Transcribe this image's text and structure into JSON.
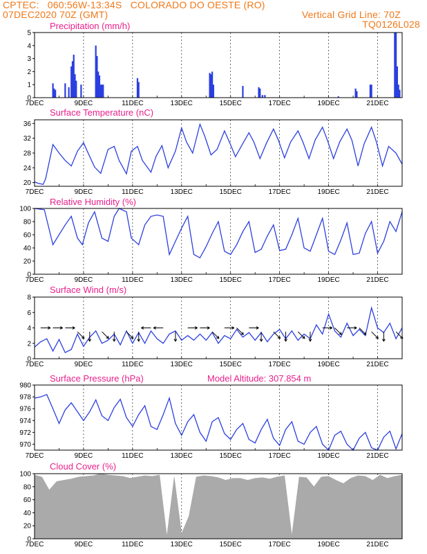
{
  "header": {
    "line1": "CPTEC:   060:56W-13:34S   COLORADO DO OESTE (RO)",
    "line2": "07DEC2020 70Z (GMT)",
    "grid_line": "Vertical Grid Line: 70Z",
    "code": "TQ0126L028"
  },
  "model_altitude": "Model Altitude: 307.854 m",
  "colors": {
    "header": "#f07818",
    "title": "#e8208c",
    "line": "#2b3fe0",
    "bar": "#2b3fe0",
    "cloud": "#aaaaaa",
    "arrow": "#000000"
  },
  "x_axis": {
    "start_day": 7,
    "end_day": 22,
    "tick_labels": [
      "7DEC",
      "9DEC",
      "11DEC",
      "13DEC",
      "15DEC",
      "17DEC",
      "19DEC",
      "21DEC"
    ],
    "tick_days": [
      7,
      9,
      11,
      13,
      15,
      17,
      19,
      21
    ]
  },
  "chart_data": [
    {
      "type": "bar",
      "title": "Precipitation (mm/h)",
      "ylim": [
        0,
        5
      ],
      "yticks": [
        "0",
        "1",
        "2",
        "3",
        "4",
        "5"
      ],
      "x": [
        7.75,
        7.8,
        7.85,
        8.25,
        8.4,
        8.5,
        8.55,
        8.6,
        8.65,
        8.7,
        8.9,
        9.5,
        9.55,
        9.6,
        9.65,
        9.7,
        9.75,
        9.8,
        11.2,
        11.25,
        14.15,
        14.2,
        14.25,
        14.3,
        15.5,
        16.15,
        16.2,
        16.3,
        16.4,
        19.4,
        20.1,
        20.15,
        20.7,
        20.75,
        21.7,
        21.75,
        21.8,
        21.85,
        21.9
      ],
      "values": [
        1.1,
        0.7,
        0.6,
        1.1,
        0.8,
        2.4,
        2.8,
        3.3,
        1.8,
        1.3,
        1.0,
        4.0,
        3.2,
        2.0,
        1.7,
        1.0,
        1.0,
        1.0,
        1.5,
        1.2,
        1.9,
        1.8,
        2.0,
        1.0,
        0.9,
        0.8,
        0.7,
        0.2,
        0.2,
        0.1,
        0.7,
        0.5,
        1.0,
        1.0,
        5.0,
        5.0,
        2.4,
        1.0,
        0.6
      ]
    },
    {
      "type": "line",
      "title": "Surface Temperature (nC)",
      "ylim": [
        19,
        37
      ],
      "yticks": [
        "20",
        "24",
        "28",
        "32",
        "36"
      ],
      "x": [
        7.0,
        7.15,
        7.35,
        7.45,
        7.75,
        8.0,
        8.25,
        8.5,
        8.75,
        9.0,
        9.15,
        9.45,
        9.7,
        10.0,
        10.25,
        10.45,
        10.75,
        10.95,
        11.2,
        11.4,
        11.75,
        11.95,
        12.2,
        12.45,
        12.75,
        13.0,
        13.2,
        13.45,
        13.75,
        13.95,
        14.2,
        14.45,
        14.75,
        14.95,
        15.2,
        15.45,
        15.75,
        15.95,
        16.2,
        16.45,
        16.75,
        16.95,
        17.2,
        17.45,
        17.75,
        17.95,
        18.2,
        18.45,
        18.75,
        18.95,
        19.2,
        19.45,
        19.75,
        19.95,
        20.2,
        20.45,
        20.75,
        20.95,
        21.2,
        21.45,
        21.75,
        22.0
      ],
      "values": [
        20.2,
        19.8,
        19.5,
        21.0,
        30.3,
        28.0,
        26.0,
        24.5,
        28.5,
        30.8,
        28.5,
        24.2,
        22.5,
        29.0,
        29.8,
        26.0,
        22.4,
        28.5,
        29.8,
        26.0,
        22.8,
        27.0,
        30.0,
        24.0,
        28.5,
        34.8,
        31.0,
        28.0,
        35.8,
        32.5,
        27.5,
        29.0,
        34.0,
        31.0,
        27.0,
        30.0,
        33.5,
        31.0,
        26.5,
        30.5,
        34.5,
        31.5,
        26.7,
        31.0,
        34.0,
        31.0,
        26.5,
        31.5,
        35.0,
        31.5,
        26.5,
        31.0,
        34.5,
        31.5,
        24.5,
        30.5,
        35.0,
        31.0,
        24.5,
        29.8,
        28.0,
        25.0
      ]
    },
    {
      "type": "line",
      "title": "Relative Humidity (%)",
      "ylim": [
        0,
        100
      ],
      "yticks": [
        "0",
        "20",
        "40",
        "60",
        "80",
        "100"
      ],
      "x": [
        7.0,
        7.4,
        7.75,
        8.0,
        8.25,
        8.5,
        8.75,
        8.95,
        9.2,
        9.45,
        9.75,
        10.0,
        10.25,
        10.45,
        10.75,
        10.95,
        11.25,
        11.5,
        11.75,
        12.0,
        12.25,
        12.5,
        12.75,
        13.0,
        13.25,
        13.5,
        13.75,
        14.0,
        14.25,
        14.5,
        14.75,
        15.0,
        15.25,
        15.5,
        15.75,
        16.0,
        16.25,
        16.5,
        16.75,
        17.0,
        17.25,
        17.5,
        17.75,
        18.0,
        18.25,
        18.5,
        18.75,
        19.0,
        19.25,
        19.5,
        19.75,
        20.0,
        20.25,
        20.5,
        20.75,
        21.0,
        21.25,
        21.5,
        21.75,
        22.0
      ],
      "values": [
        100,
        98,
        45,
        60,
        75,
        88,
        55,
        45,
        78,
        95,
        55,
        50,
        88,
        100,
        95,
        55,
        45,
        75,
        88,
        90,
        88,
        30,
        50,
        70,
        88,
        30,
        25,
        42,
        62,
        80,
        35,
        30,
        45,
        65,
        80,
        33,
        38,
        58,
        75,
        36,
        38,
        60,
        85,
        40,
        35,
        60,
        85,
        35,
        30,
        52,
        78,
        30,
        32,
        62,
        80,
        32,
        50,
        80,
        65,
        95
      ]
    },
    {
      "type": "line",
      "title": "Surface Wind (m/s)",
      "ylim": [
        0,
        8
      ],
      "yticks": [
        "0",
        "2",
        "4",
        "6",
        "8"
      ],
      "x": [
        7.0,
        7.25,
        7.5,
        7.75,
        8.0,
        8.25,
        8.5,
        8.75,
        9.0,
        9.25,
        9.5,
        9.75,
        10.0,
        10.25,
        10.5,
        10.75,
        11.0,
        11.25,
        11.5,
        11.75,
        12.0,
        12.25,
        12.5,
        12.75,
        13.0,
        13.25,
        13.5,
        13.75,
        14.0,
        14.25,
        14.5,
        14.75,
        15.0,
        15.25,
        15.5,
        15.75,
        16.0,
        16.25,
        16.5,
        16.75,
        17.0,
        17.25,
        17.5,
        17.75,
        18.0,
        18.25,
        18.5,
        18.75,
        19.0,
        19.25,
        19.5,
        19.75,
        20.0,
        20.25,
        20.5,
        20.75,
        21.0,
        21.25,
        21.5,
        21.75,
        22.0
      ],
      "values": [
        1.5,
        2.2,
        2.6,
        1.0,
        2.5,
        0.8,
        1.2,
        3.2,
        1.6,
        2.8,
        3.6,
        2.0,
        2.4,
        3.2,
        1.8,
        3.6,
        2.0,
        3.4,
        2.0,
        3.6,
        2.6,
        2.0,
        3.2,
        3.6,
        2.4,
        3.0,
        2.4,
        3.2,
        2.4,
        3.4,
        2.0,
        3.0,
        2.6,
        3.8,
        2.8,
        3.4,
        2.4,
        3.4,
        2.2,
        3.2,
        3.8,
        2.6,
        3.6,
        2.4,
        3.2,
        2.6,
        4.4,
        3.2,
        5.8,
        3.6,
        2.8,
        4.6,
        3.0,
        3.8,
        3.0,
        6.6,
        4.0,
        3.4,
        4.6,
        2.6,
        4.0
      ]
    },
    {
      "type": "line",
      "title": "Surface Pressure (hPa)",
      "ylim": [
        969,
        980
      ],
      "yticks": [
        "970",
        "972",
        "974",
        "976",
        "978",
        "980"
      ],
      "x": [
        7.0,
        7.25,
        7.5,
        7.75,
        8.0,
        8.25,
        8.5,
        8.75,
        9.0,
        9.25,
        9.5,
        9.75,
        10.0,
        10.25,
        10.5,
        10.75,
        11.0,
        11.25,
        11.5,
        11.75,
        12.0,
        12.25,
        12.5,
        12.75,
        13.0,
        13.25,
        13.5,
        13.75,
        14.0,
        14.25,
        14.5,
        14.75,
        15.0,
        15.25,
        15.5,
        15.75,
        16.0,
        16.25,
        16.5,
        16.75,
        17.0,
        17.25,
        17.5,
        17.75,
        18.0,
        18.25,
        18.5,
        18.75,
        19.0,
        19.25,
        19.5,
        19.75,
        20.0,
        20.25,
        20.5,
        20.75,
        21.0,
        21.25,
        21.5,
        21.75,
        22.0
      ],
      "values": [
        977.8,
        978.0,
        978.4,
        976.0,
        973.5,
        975.8,
        977.0,
        975.5,
        974.0,
        975.5,
        977.5,
        974.8,
        974.0,
        976.2,
        977.6,
        974.5,
        973.0,
        975.0,
        976.5,
        973.0,
        972.5,
        975.0,
        977.8,
        973.5,
        971.5,
        973.8,
        975.0,
        972.0,
        970.5,
        973.8,
        974.5,
        971.8,
        970.8,
        972.5,
        973.5,
        970.8,
        970.2,
        972.5,
        974.2,
        971.0,
        969.8,
        972.5,
        973.8,
        970.5,
        970.0,
        972.0,
        973.0,
        970.0,
        969.0,
        971.5,
        972.2,
        970.0,
        969.0,
        971.0,
        972.0,
        969.4,
        969.0,
        971.2,
        972.2,
        969.2,
        971.8
      ]
    },
    {
      "type": "area",
      "title": "Cloud Cover (%)",
      "ylim": [
        0,
        100
      ],
      "yticks": [
        "0",
        "20",
        "40",
        "60",
        "80",
        "100"
      ],
      "x": [
        7.0,
        7.3,
        7.6,
        7.9,
        8.2,
        8.5,
        8.8,
        9.1,
        9.4,
        9.7,
        10.0,
        10.3,
        10.6,
        10.9,
        11.2,
        11.5,
        11.8,
        12.1,
        12.4,
        12.7,
        13.0,
        13.3,
        13.6,
        13.9,
        14.2,
        14.5,
        14.8,
        15.1,
        15.4,
        15.7,
        16.0,
        16.3,
        16.6,
        16.9,
        17.2,
        17.5,
        17.8,
        18.1,
        18.4,
        18.7,
        19.0,
        19.3,
        19.6,
        19.9,
        20.2,
        20.5,
        20.8,
        21.1,
        21.4,
        21.7,
        22.0
      ],
      "values": [
        98,
        95,
        75,
        88,
        90,
        92,
        95,
        96,
        97,
        100,
        98,
        97,
        96,
        93,
        95,
        97,
        96,
        98,
        4,
        95,
        8,
        35,
        95,
        97,
        96,
        94,
        90,
        93,
        93,
        90,
        93,
        94,
        92,
        95,
        97,
        5,
        95,
        94,
        80,
        95,
        96,
        90,
        85,
        93,
        97,
        96,
        90,
        98,
        93,
        96,
        98
      ]
    }
  ],
  "wind_vectors": [
    {
      "day": 7.25,
      "speed": 4.0,
      "dir": "E"
    },
    {
      "day": 7.75,
      "speed": 4.0,
      "dir": "E"
    },
    {
      "day": 8.25,
      "speed": 4.0,
      "dir": "E"
    },
    {
      "day": 8.75,
      "speed": 3.5,
      "dir": "SE"
    },
    {
      "day": 9.25,
      "speed": 3.5,
      "dir": "S"
    },
    {
      "day": 9.75,
      "speed": 3.5,
      "dir": "SE"
    },
    {
      "day": 10.25,
      "speed": 3.5,
      "dir": "S"
    },
    {
      "day": 10.75,
      "speed": 3.5,
      "dir": "SE"
    },
    {
      "day": 11.25,
      "speed": 3.5,
      "dir": "S"
    },
    {
      "day": 11.75,
      "speed": 4.0,
      "dir": "W"
    },
    {
      "day": 12.25,
      "speed": 4.0,
      "dir": "W"
    },
    {
      "day": 12.75,
      "speed": 3.5,
      "dir": "S"
    },
    {
      "day": 13.25,
      "speed": 4.0,
      "dir": "E"
    },
    {
      "day": 13.75,
      "speed": 4.0,
      "dir": "E"
    },
    {
      "day": 14.25,
      "speed": 3.5,
      "dir": "SE"
    },
    {
      "day": 14.75,
      "speed": 4.0,
      "dir": "E"
    },
    {
      "day": 15.25,
      "speed": 4.0,
      "dir": "SE"
    },
    {
      "day": 15.75,
      "speed": 4.0,
      "dir": "E"
    },
    {
      "day": 16.25,
      "speed": 3.5,
      "dir": "S"
    },
    {
      "day": 16.75,
      "speed": 3.5,
      "dir": "SE"
    },
    {
      "day": 17.25,
      "speed": 3.5,
      "dir": "S"
    },
    {
      "day": 17.75,
      "speed": 3.5,
      "dir": "SE"
    },
    {
      "day": 18.25,
      "speed": 3.5,
      "dir": "S"
    },
    {
      "day": 18.75,
      "speed": 4.0,
      "dir": "E"
    },
    {
      "day": 19.25,
      "speed": 4.0,
      "dir": "SE"
    },
    {
      "day": 19.75,
      "speed": 4.0,
      "dir": "E"
    },
    {
      "day": 20.25,
      "speed": 4.0,
      "dir": "SE"
    },
    {
      "day": 20.75,
      "speed": 3.5,
      "dir": "SE"
    },
    {
      "day": 21.25,
      "speed": 3.5,
      "dir": "S"
    },
    {
      "day": 21.75,
      "speed": 3.5,
      "dir": "SE"
    }
  ]
}
